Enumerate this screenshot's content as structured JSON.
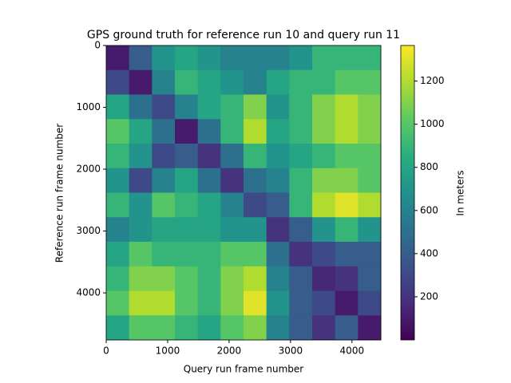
{
  "chart_data": {
    "type": "heatmap",
    "title": "GPS ground truth for reference run 10 and query run 11",
    "x_label": "Query run frame number",
    "y_label": "Reference run frame number",
    "colorbar_label": "In meters",
    "colormap": "viridis",
    "xlim": [
      0,
      4470
    ],
    "ylim": [
      4760,
      0
    ],
    "xticks": [
      0,
      1000,
      2000,
      3000,
      4000
    ],
    "yticks": [
      0,
      1000,
      2000,
      3000,
      4000
    ],
    "clim": [
      0,
      1365
    ],
    "cticks": [
      200,
      400,
      600,
      800,
      1000,
      1200
    ],
    "z": [
      [
        100,
        400,
        700,
        800,
        700,
        600,
        600,
        600,
        700,
        900,
        900,
        900
      ],
      [
        300,
        100,
        600,
        900,
        800,
        700,
        600,
        800,
        900,
        900,
        1000,
        1000
      ],
      [
        800,
        500,
        300,
        600,
        800,
        900,
        1100,
        700,
        900,
        1100,
        1200,
        1100
      ],
      [
        1000,
        800,
        500,
        100,
        500,
        900,
        1200,
        800,
        900,
        1100,
        1200,
        1100
      ],
      [
        900,
        700,
        300,
        400,
        200,
        500,
        900,
        700,
        800,
        900,
        1000,
        1000
      ],
      [
        700,
        300,
        600,
        800,
        500,
        200,
        500,
        600,
        900,
        1100,
        1100,
        1000
      ],
      [
        900,
        700,
        1000,
        900,
        800,
        600,
        300,
        400,
        900,
        1200,
        1300,
        1200
      ],
      [
        600,
        700,
        800,
        800,
        800,
        700,
        700,
        200,
        400,
        700,
        900,
        700
      ],
      [
        800,
        1000,
        900,
        900,
        900,
        1000,
        1000,
        500,
        200,
        300,
        400,
        400
      ],
      [
        900,
        1100,
        1100,
        1000,
        900,
        1100,
        1200,
        600,
        400,
        150,
        200,
        400
      ],
      [
        1000,
        1200,
        1200,
        1000,
        900,
        1100,
        1300,
        700,
        400,
        300,
        100,
        300
      ],
      [
        800,
        1000,
        1000,
        900,
        800,
        1000,
        1100,
        600,
        400,
        200,
        400,
        100
      ]
    ]
  }
}
